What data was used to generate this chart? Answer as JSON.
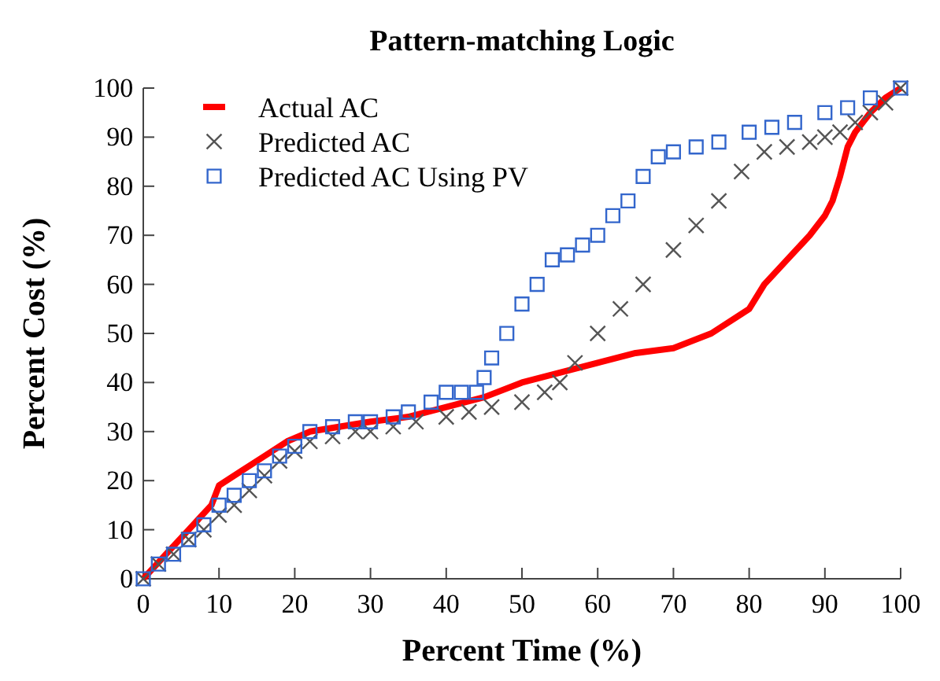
{
  "chart_data": {
    "type": "scatter",
    "title": "Pattern-matching Logic",
    "xlabel": "Percent Time (%)",
    "ylabel": "Percent Cost (%)",
    "xlim": [
      0,
      100
    ],
    "ylim": [
      0,
      100
    ],
    "xticks": [
      0,
      10,
      20,
      30,
      40,
      50,
      60,
      70,
      80,
      90,
      100
    ],
    "yticks": [
      0,
      10,
      20,
      30,
      40,
      50,
      60,
      70,
      80,
      90,
      100
    ],
    "legend": "top left",
    "grid": false,
    "series": [
      {
        "name": "Actual AC",
        "color": "#ff0000",
        "type": "line",
        "marker": "none",
        "x": [
          0,
          3,
          6,
          9,
          10,
          13,
          16,
          19,
          22,
          26,
          30,
          35,
          40,
          45,
          50,
          55,
          60,
          65,
          70,
          75,
          79,
          80,
          82,
          85,
          88,
          90,
          91,
          92,
          93,
          94,
          96,
          98,
          100
        ],
        "values": [
          0,
          5,
          10,
          15,
          19,
          22,
          25,
          28,
          30,
          31,
          32,
          33,
          35,
          37,
          40,
          42,
          44,
          46,
          47,
          50,
          54,
          55,
          60,
          65,
          70,
          74,
          77,
          82,
          88,
          91,
          95,
          98,
          100
        ]
      },
      {
        "name": "Predicted AC",
        "color": "#555555",
        "marker": "cross",
        "x": [
          0,
          2,
          4,
          6,
          8,
          10,
          12,
          14,
          16,
          18,
          20,
          22,
          25,
          28,
          30,
          33,
          36,
          40,
          43,
          46,
          50,
          53,
          55,
          57,
          60,
          63,
          66,
          70,
          73,
          76,
          79,
          82,
          85,
          88,
          90,
          92,
          94,
          96,
          98,
          100
        ],
        "values": [
          0,
          3,
          5,
          8,
          10,
          13,
          15,
          18,
          21,
          24,
          26,
          28,
          29,
          30,
          30,
          31,
          32,
          33,
          34,
          35,
          36,
          38,
          40,
          44,
          50,
          55,
          60,
          67,
          72,
          77,
          83,
          87,
          88,
          89,
          90,
          91,
          93,
          95,
          97,
          100
        ]
      },
      {
        "name": "Predicted AC Using PV",
        "color": "#3366cc",
        "marker": "square",
        "x": [
          0,
          2,
          4,
          6,
          8,
          10,
          12,
          14,
          16,
          18,
          20,
          22,
          25,
          28,
          30,
          33,
          35,
          38,
          40,
          42,
          44,
          45,
          46,
          48,
          50,
          52,
          54,
          56,
          58,
          60,
          62,
          64,
          66,
          68,
          70,
          73,
          76,
          80,
          83,
          86,
          90,
          93,
          96,
          100
        ],
        "values": [
          0,
          3,
          5,
          8,
          11,
          15,
          17,
          20,
          22,
          25,
          27,
          30,
          31,
          32,
          32,
          33,
          34,
          36,
          38,
          38,
          38,
          41,
          45,
          50,
          56,
          60,
          65,
          66,
          68,
          70,
          74,
          77,
          82,
          86,
          87,
          88,
          89,
          91,
          92,
          93,
          95,
          96,
          98,
          100
        ]
      }
    ]
  }
}
